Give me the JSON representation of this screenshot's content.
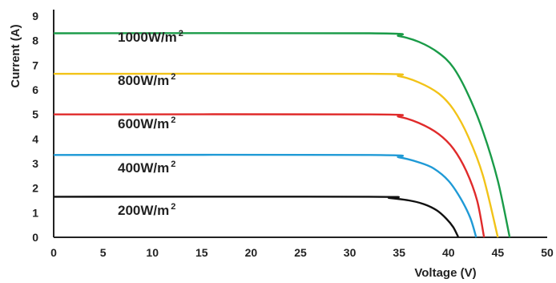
{
  "chart_data": {
    "type": "line",
    "xlabel": "Voltage (V)",
    "ylabel": "Current (A)",
    "xlim": [
      0,
      50
    ],
    "ylim": [
      0,
      9
    ],
    "x_ticks": [
      "0",
      "5",
      "10",
      "15",
      "20",
      "25",
      "30",
      "35",
      "40",
      "45",
      "50"
    ],
    "y_ticks": [
      "0",
      "1",
      "2",
      "3",
      "4",
      "5",
      "6",
      "7",
      "8",
      "9"
    ],
    "grid": false,
    "series": [
      {
        "name": "1000W/m2",
        "label_main": "1000W/m",
        "label_sup": "2",
        "color": "#1a9b48",
        "isc": 8.3,
        "voc": 46.2,
        "points": [
          [
            0,
            8.3
          ],
          [
            32,
            8.3
          ],
          [
            35,
            8.18
          ],
          [
            37,
            7.95
          ],
          [
            39,
            7.5
          ],
          [
            40.5,
            6.9
          ],
          [
            42,
            5.8
          ],
          [
            43.5,
            4.3
          ],
          [
            45,
            2.3
          ],
          [
            46.2,
            0
          ]
        ]
      },
      {
        "name": "800W/m2",
        "label_main": "800W/m",
        "label_sup": "2",
        "color": "#f2c318",
        "isc": 6.65,
        "voc": 45.0,
        "points": [
          [
            0,
            6.65
          ],
          [
            32,
            6.65
          ],
          [
            35,
            6.55
          ],
          [
            37,
            6.3
          ],
          [
            39,
            5.85
          ],
          [
            40.5,
            5.2
          ],
          [
            42,
            4.1
          ],
          [
            43.5,
            2.5
          ],
          [
            45,
            0
          ]
        ]
      },
      {
        "name": "600W/m2",
        "label_main": "600W/m",
        "label_sup": "2",
        "color": "#e02b2b",
        "isc": 5.0,
        "voc": 43.6,
        "points": [
          [
            0,
            5.0
          ],
          [
            32,
            5.0
          ],
          [
            35,
            4.9
          ],
          [
            37,
            4.65
          ],
          [
            39,
            4.2
          ],
          [
            40.5,
            3.6
          ],
          [
            41.8,
            2.7
          ],
          [
            42.9,
            1.5
          ],
          [
            43.6,
            0
          ]
        ]
      },
      {
        "name": "400W/m2",
        "label_main": "400W/m",
        "label_sup": "2",
        "color": "#1f9ad6",
        "isc": 3.35,
        "voc": 42.8,
        "points": [
          [
            0,
            3.35
          ],
          [
            32,
            3.35
          ],
          [
            35,
            3.25
          ],
          [
            37,
            3.05
          ],
          [
            38.5,
            2.8
          ],
          [
            40,
            2.3
          ],
          [
            41.2,
            1.6
          ],
          [
            42.2,
            0.8
          ],
          [
            42.8,
            0
          ]
        ]
      },
      {
        "name": "200W/m2",
        "label_main": "200W/m",
        "label_sup": "2",
        "color": "#111111",
        "isc": 1.65,
        "voc": 41.0,
        "points": [
          [
            0,
            1.65
          ],
          [
            32,
            1.65
          ],
          [
            34,
            1.6
          ],
          [
            36,
            1.5
          ],
          [
            37.5,
            1.35
          ],
          [
            38.8,
            1.1
          ],
          [
            39.8,
            0.75
          ],
          [
            40.5,
            0.4
          ],
          [
            41.0,
            0
          ]
        ]
      }
    ]
  }
}
